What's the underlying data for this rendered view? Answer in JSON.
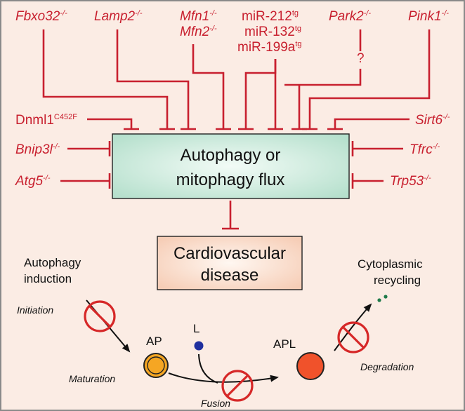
{
  "genes": {
    "fbxo32": "Fbxo32",
    "lamp2": "Lamp2",
    "mfn1": "Mfn1",
    "mfn2": "Mfn2",
    "mir212": "miR-212",
    "mir132": "miR-132",
    "mir199a": "miR-199a",
    "park2": "Park2",
    "pink1": "Pink1",
    "dnml1": "Dnml1",
    "dnml1_sup": "C452F",
    "sirt6": "Sirt6",
    "bnip3l": "Bnip3l",
    "tfrc": "Tfrc",
    "atg5": "Atg5",
    "trp53": "Trp53",
    "knockout_sup": "-/-",
    "transgenic_sup": "tg",
    "question_mark": "?"
  },
  "boxes": {
    "flux_line1": "Autophagy or",
    "flux_line2": "mitophagy flux",
    "disease_line1": "Cardiovascular",
    "disease_line2": "disease"
  },
  "pathway": {
    "induction_line1": "Autophagy",
    "induction_line2": "induction",
    "recycling_line1": "Cytoplasmic",
    "recycling_line2": "recycling",
    "initiation": "Initiation",
    "maturation": "Maturation",
    "fusion": "Fusion",
    "degradation": "Degradation",
    "ap": "AP",
    "l": "L",
    "apl": "APL"
  },
  "colors": {
    "inhibitor": "#c8202f",
    "background": "#fbece4",
    "flux_box": "#ccecdf",
    "disease_box": "#fbe2d3",
    "ap_fill": "#f5a623",
    "l_fill": "#1f2f9e",
    "apl_fill": "#f0522b",
    "prohibit": "#d62828"
  }
}
